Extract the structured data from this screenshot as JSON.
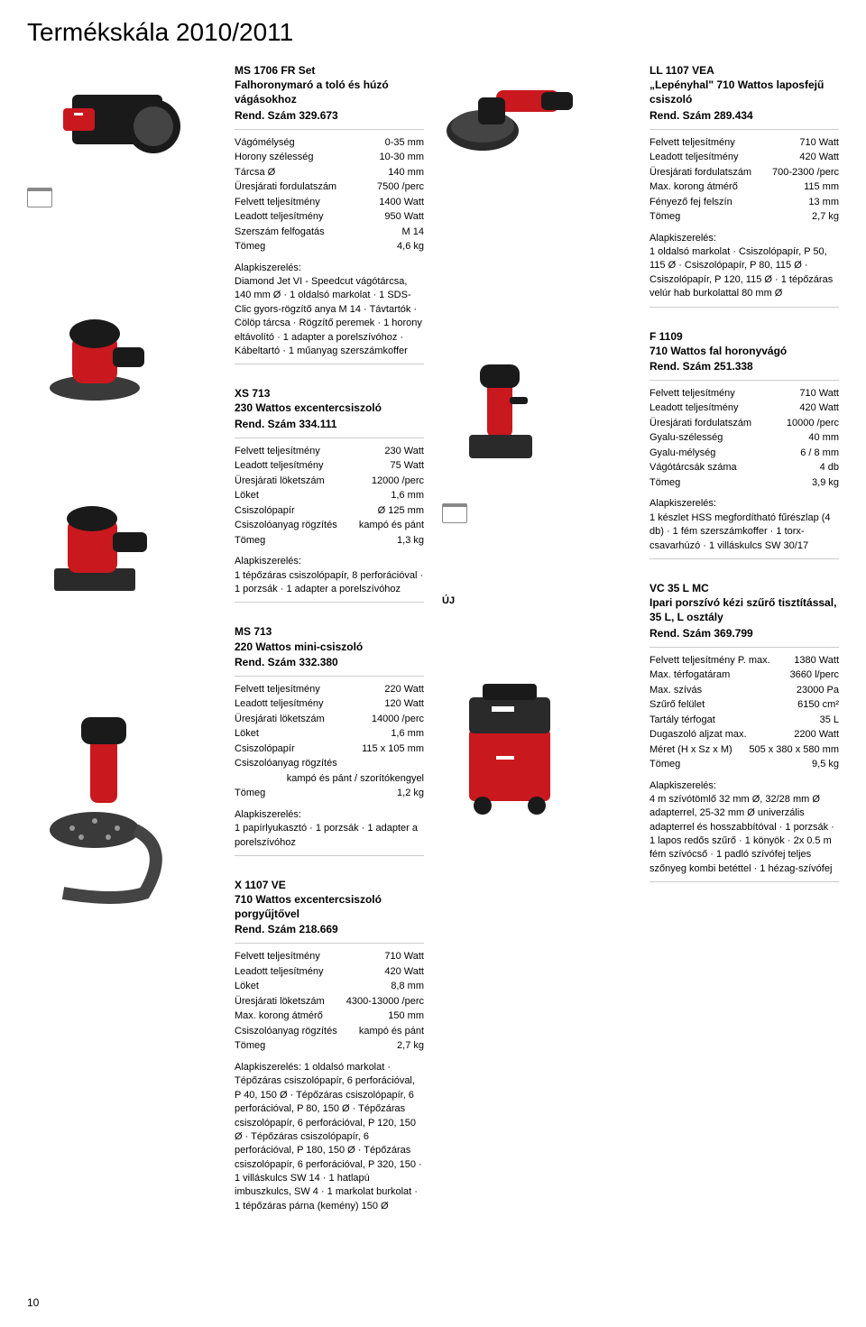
{
  "page_title": "Termékskála 2010/2011",
  "page_number": "10",
  "new_label": "ÚJ",
  "accessories_label": "Alapkiszerelés:",
  "colors": {
    "flex_red": "#c9181e",
    "black": "#1a1a1a",
    "grey": "#6b6b6b",
    "light_grey": "#cccccc"
  },
  "products": {
    "ms1706": {
      "title": "MS 1706 FR Set\nFalhoronymaró a toló és húzó vágásokhoz",
      "ref": "Rend. Szám 329.673",
      "specs": [
        {
          "label": "Vágómélység",
          "value": "0-35 mm"
        },
        {
          "label": "Horony szélesség",
          "value": "10-30 mm"
        },
        {
          "label": "Tárcsa Ø",
          "value": "140 mm"
        },
        {
          "label": "Üresjárati fordulatszám",
          "value": "7500 /perc"
        },
        {
          "label": "Felvett teljesítmény",
          "value": "1400 Watt"
        },
        {
          "label": "Leadott teljesítmény",
          "value": "950 Watt"
        },
        {
          "label": "Szerszám felfogatás",
          "value": "M 14"
        },
        {
          "label": "Tömeg",
          "value": "4,6 kg"
        }
      ],
      "acc": "Diamond Jet VI - Speedcut vágótárcsa, 140 mm Ø · 1 oldalsó markolat · 1 SDS-Clic gyors-rögzítő anya M 14 · Távtartók · Cölöp tárcsa · Rögzítő peremek · 1 horony eltávolító · 1 adapter a porelszívóhoz · Kábeltartó · 1 műanyag szerszámkoffer"
    },
    "xs713": {
      "title": "XS 713\n230 Wattos excentercsiszoló",
      "ref": "Rend. Szám 334.111",
      "specs": [
        {
          "label": "Felvett teljesítmény",
          "value": "230 Watt"
        },
        {
          "label": "Leadott teljesítmény",
          "value": "75 Watt"
        },
        {
          "label": "Üresjárati löketszám",
          "value": "12000 /perc"
        },
        {
          "label": "Löket",
          "value": "1,6 mm"
        },
        {
          "label": "Csiszolópapír",
          "value": "Ø 125 mm"
        },
        {
          "label": "Csiszolóanyag rögzítés",
          "value": "kampó és pánt"
        },
        {
          "label": "Tömeg",
          "value": "1,3 kg"
        }
      ],
      "acc": "1 tépőzáras csiszolópapír, 8 perforációval · 1 porzsák · 1 adapter a porelszívóhoz"
    },
    "ms713": {
      "title": "MS 713\n220 Wattos mini-csiszoló",
      "ref": "Rend. Szám 332.380",
      "specs": [
        {
          "label": "Felvett teljesítmény",
          "value": "220 Watt"
        },
        {
          "label": "Leadott teljesítmény",
          "value": "120 Watt"
        },
        {
          "label": "Üresjárati löketszám",
          "value": "14000 /perc"
        },
        {
          "label": "Löket",
          "value": "1,6 mm"
        },
        {
          "label": "Csiszolópapír",
          "value": "115 x 105 mm"
        },
        {
          "label": "Csiszolóanyag rögzítés",
          "value": ""
        },
        {
          "label": "",
          "value": "kampó és pánt / szorítókengyel"
        },
        {
          "label": "Tömeg",
          "value": "1,2 kg"
        }
      ],
      "acc": "1 papírlyukasztó · 1 porzsák · 1 adapter a porelszívóhoz"
    },
    "x1107": {
      "title": "X 1107 VE\n710 Wattos excentercsiszoló porgyűjtővel",
      "ref": "Rend. Szám 218.669",
      "specs": [
        {
          "label": "Felvett teljesítmény",
          "value": "710 Watt"
        },
        {
          "label": "Leadott teljesítmény",
          "value": "420 Watt"
        },
        {
          "label": "Löket",
          "value": "8,8 mm"
        },
        {
          "label": "Üresjárati löketszám",
          "value": "4300-13000 /perc"
        },
        {
          "label": "Max. korong átmérő",
          "value": "150 mm"
        },
        {
          "label": "Csiszolóanyag rögzítés",
          "value": "kampó és pánt"
        },
        {
          "label": "Tömeg",
          "value": "2,7 kg"
        }
      ],
      "acc": "Alapkiszerelés: 1 oldalsó markolat · Tépőzáras csiszolópapír, 6 perforációval, P 40, 150 Ø · Tépőzáras csiszolópapír, 6 perforációval, P 80, 150 Ø · Tépőzáras csiszolópapír, 6 perforációval, P 120, 150 Ø · Tépőzáras csiszolópapír, 6 perforációval, P 180, 150 Ø · Tépőzáras csiszolópapír, 6 perforációval, P 320, 150 · 1 villáskulcs SW 14 · 1 hatlapú imbuszkulcs, SW 4 · 1 markolat burkolat · 1 tépőzáras párna (kemény) 150 Ø"
    },
    "ll1107": {
      "title": "LL 1107 VEA\n„Lepényhal\" 710 Wattos laposfejű csiszoló",
      "ref": "Rend. Szám 289.434",
      "specs": [
        {
          "label": "Felvett teljesítmény",
          "value": "710 Watt"
        },
        {
          "label": "Leadott teljesítmény",
          "value": "420 Watt"
        },
        {
          "label": "Üresjárati fordulatszám",
          "value": "700-2300 /perc"
        },
        {
          "label": "Max. korong átmérő",
          "value": "115 mm"
        },
        {
          "label": "Fényező fej felszín",
          "value": "13 mm"
        },
        {
          "label": "Tömeg",
          "value": "2,7 kg"
        }
      ],
      "acc": "1 oldalsó markolat · Csiszolópapír, P 50, 115 Ø · Csiszolópapír, P 80, 115 Ø · Csiszolópapír, P 120, 115 Ø · 1 tépőzáras velúr hab burkolattal 80 mm Ø"
    },
    "f1109": {
      "title": "F 1109\n710 Wattos fal horonyvágó",
      "ref": "Rend. Szám 251.338",
      "specs": [
        {
          "label": "Felvett teljesítmény",
          "value": "710 Watt"
        },
        {
          "label": "Leadott teljesítmény",
          "value": "420 Watt"
        },
        {
          "label": "Üresjárati fordulatszám",
          "value": "10000 /perc"
        },
        {
          "label": "Gyalu-szélesség",
          "value": "40 mm"
        },
        {
          "label": "Gyalu-mélység",
          "value": "6 / 8 mm"
        },
        {
          "label": "Vágótárcsák száma",
          "value": "4 db"
        },
        {
          "label": "Tömeg",
          "value": "3,9 kg"
        }
      ],
      "acc": "1 készlet HSS megfordítható fűrészlap (4 db) · 1 fém szerszámkoffer · 1 torx-csavarhúzó · 1 villáskulcs SW 30/17"
    },
    "vc35": {
      "title": "VC 35 L MC\nIpari porszívó kézi szűrő tisztítással, 35 L, L osztály",
      "ref": "Rend. Szám 369.799",
      "specs": [
        {
          "label": "Felvett teljesítmény P. max.",
          "value": "1380 Watt"
        },
        {
          "label": "Max. térfogatáram",
          "value": "3660 l/perc"
        },
        {
          "label": "Max. szívás",
          "value": "23000 Pa"
        },
        {
          "label": "Szűrő felület",
          "value": "6150 cm²"
        },
        {
          "label": "Tartály térfogat",
          "value": "35 L"
        },
        {
          "label": "Dugaszoló aljzat max.",
          "value": "2200 Watt"
        },
        {
          "label": "Méret (H x Sz x M)",
          "value": "505 x 380 x 580 mm"
        },
        {
          "label": "Tömeg",
          "value": "9,5 kg"
        }
      ],
      "acc": "4 m szívótömlő 32 mm Ø, 32/28 mm Ø adapterrel, 25-32 mm Ø univerzális adapterrel és hosszabbítóval · 1 porzsák · 1 lapos redős szűrő · 1 könyök · 2x 0.5 m fém szívócső · 1 padló szívófej teljes szőnyeg kombi betéttel · 1 hézag-szívófej"
    }
  }
}
